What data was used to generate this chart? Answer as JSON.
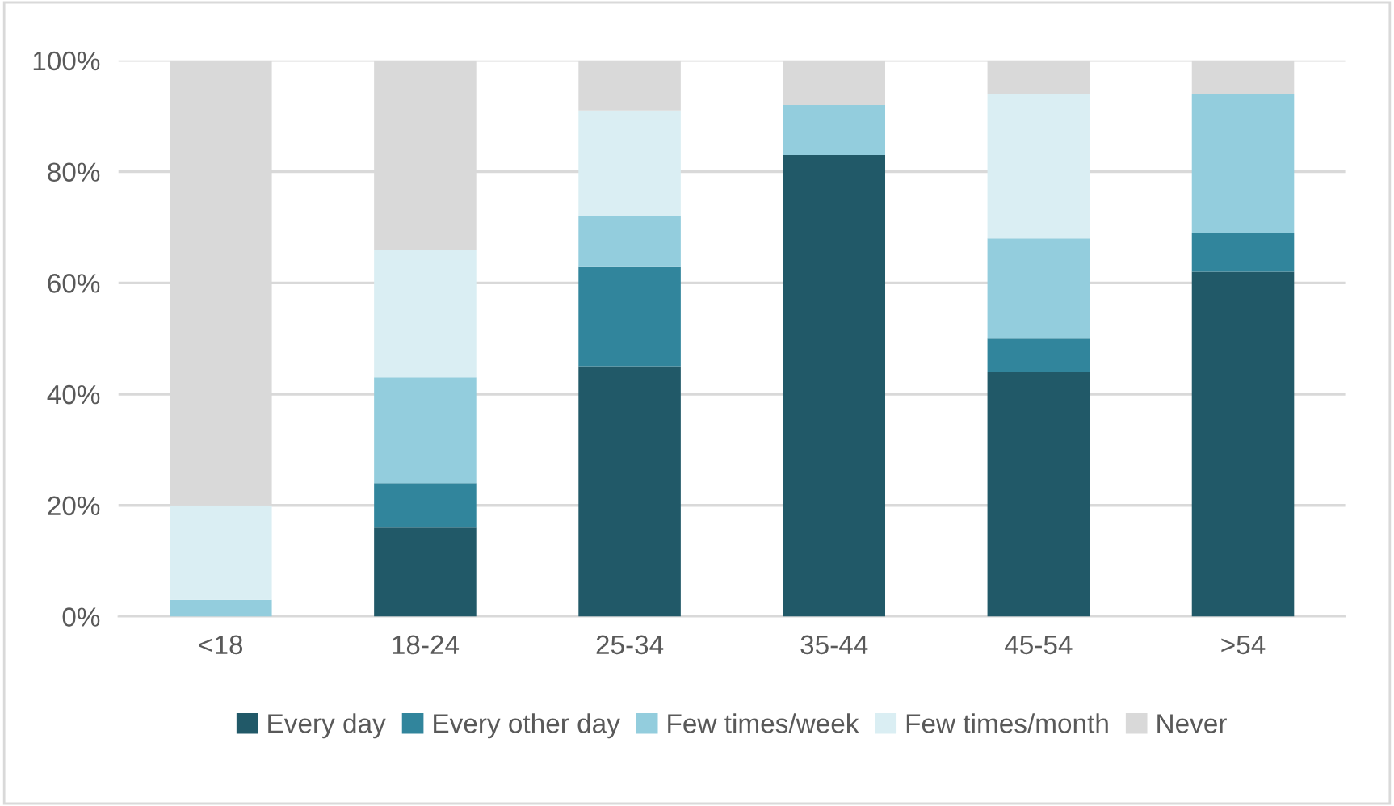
{
  "chart_data": {
    "type": "bar",
    "stacked": true,
    "categories": [
      "<18",
      "18-24",
      "25-34",
      "35-44",
      "45-54",
      ">54"
    ],
    "series": [
      {
        "name": "Every day",
        "color": "#215968",
        "values": [
          0,
          16,
          45,
          83,
          44,
          62
        ]
      },
      {
        "name": "Every other day",
        "color": "#31859c",
        "values": [
          0,
          8,
          18,
          0,
          6,
          7
        ]
      },
      {
        "name": "Few times/week",
        "color": "#93cddd",
        "values": [
          3,
          19,
          9,
          9,
          18,
          25
        ]
      },
      {
        "name": "Few times/month",
        "color": "#daeef3",
        "values": [
          17,
          23,
          19,
          0,
          26,
          0
        ]
      },
      {
        "name": "Never",
        "color": "#d9d9d9",
        "values": [
          80,
          34,
          9,
          8,
          6,
          6
        ]
      }
    ],
    "ylim": [
      0,
      100
    ],
    "yticks": [
      {
        "value": 0,
        "label": "0%"
      },
      {
        "value": 20,
        "label": "20%"
      },
      {
        "value": 40,
        "label": "40%"
      },
      {
        "value": 60,
        "label": "60%"
      },
      {
        "value": 80,
        "label": "80%"
      },
      {
        "value": 100,
        "label": "100%"
      }
    ],
    "grid": "y",
    "legend": "bottom"
  }
}
